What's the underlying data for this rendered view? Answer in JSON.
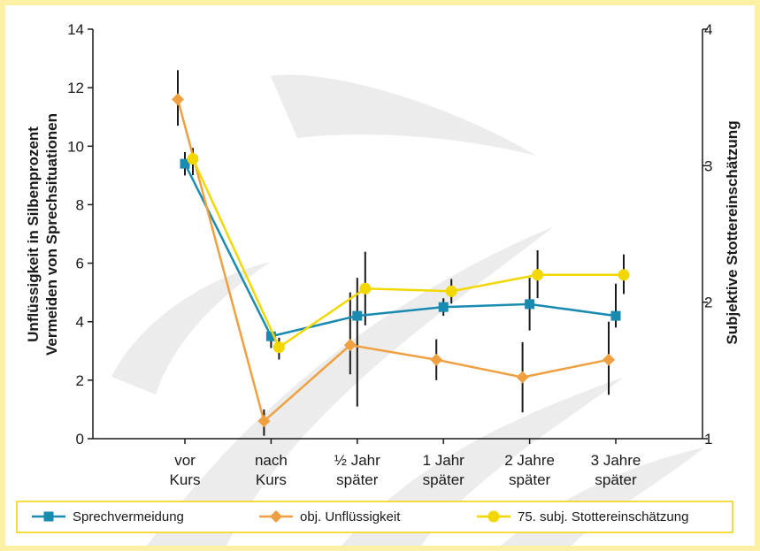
{
  "chart_data": {
    "type": "line",
    "title": "",
    "categories": [
      "vor Kurs",
      "nach Kurs",
      "½ Jahr später",
      "1 Jahr später",
      "2 Jahre später",
      "3 Jahre später"
    ],
    "category_lines": [
      [
        "vor",
        "Kurs"
      ],
      [
        "nach",
        "Kurs"
      ],
      [
        "½ Jahr",
        "später"
      ],
      [
        "1 Jahr",
        "später"
      ],
      [
        "2 Jahre",
        "später"
      ],
      [
        "3 Jahre",
        "später"
      ]
    ],
    "ylabel_left": [
      "Unflüssigkeit in Silbenprozent",
      "Vermeiden von Sprechsituationen"
    ],
    "ylabel_right": "Subjektive Stottereinschätzung",
    "ylim_left": [
      0,
      14
    ],
    "yticks_left": [
      0,
      2,
      4,
      6,
      8,
      10,
      12,
      14
    ],
    "ylim_right": [
      1,
      4
    ],
    "yticks_right": [
      1,
      2,
      3,
      4
    ],
    "legend_position": "bottom",
    "grid": false,
    "series": [
      {
        "name": "Sprechvermeidung",
        "axis": "left",
        "marker": "square",
        "color": "#1A8BB0",
        "values": [
          9.4,
          3.5,
          4.2,
          4.5,
          4.6,
          4.2
        ],
        "err_low": [
          9.0,
          3.1,
          1.1,
          4.2,
          3.7,
          3.8
        ],
        "err_high": [
          9.8,
          3.5,
          5.5,
          4.8,
          5.5,
          5.3
        ]
      },
      {
        "name": "obj. Unflüssigkeit",
        "axis": "left",
        "marker": "diamond",
        "color": "#F0A040",
        "values": [
          11.6,
          0.6,
          3.2,
          2.7,
          2.1,
          2.7
        ],
        "err_low": [
          10.7,
          0.1,
          2.2,
          2.0,
          0.9,
          1.5
        ],
        "err_high": [
          12.6,
          1.0,
          5.0,
          3.4,
          3.3,
          4.0
        ]
      },
      {
        "name": "75. subj. Stottereinschätzung",
        "axis": "right",
        "marker": "circle",
        "color": "#F2D800",
        "values": [
          3.05,
          1.67,
          2.1,
          2.08,
          2.2,
          2.2
        ],
        "err_low": [
          2.93,
          1.58,
          1.83,
          1.99,
          2.03,
          2.06
        ],
        "err_high": [
          3.13,
          1.74,
          2.37,
          2.17,
          2.38,
          2.35
        ]
      }
    ]
  },
  "colors": {
    "frame": "#FDEFA4",
    "watermark": "#DCDCDC",
    "axis": "#1a1a1a",
    "errorbar": "#1a1a1a"
  }
}
